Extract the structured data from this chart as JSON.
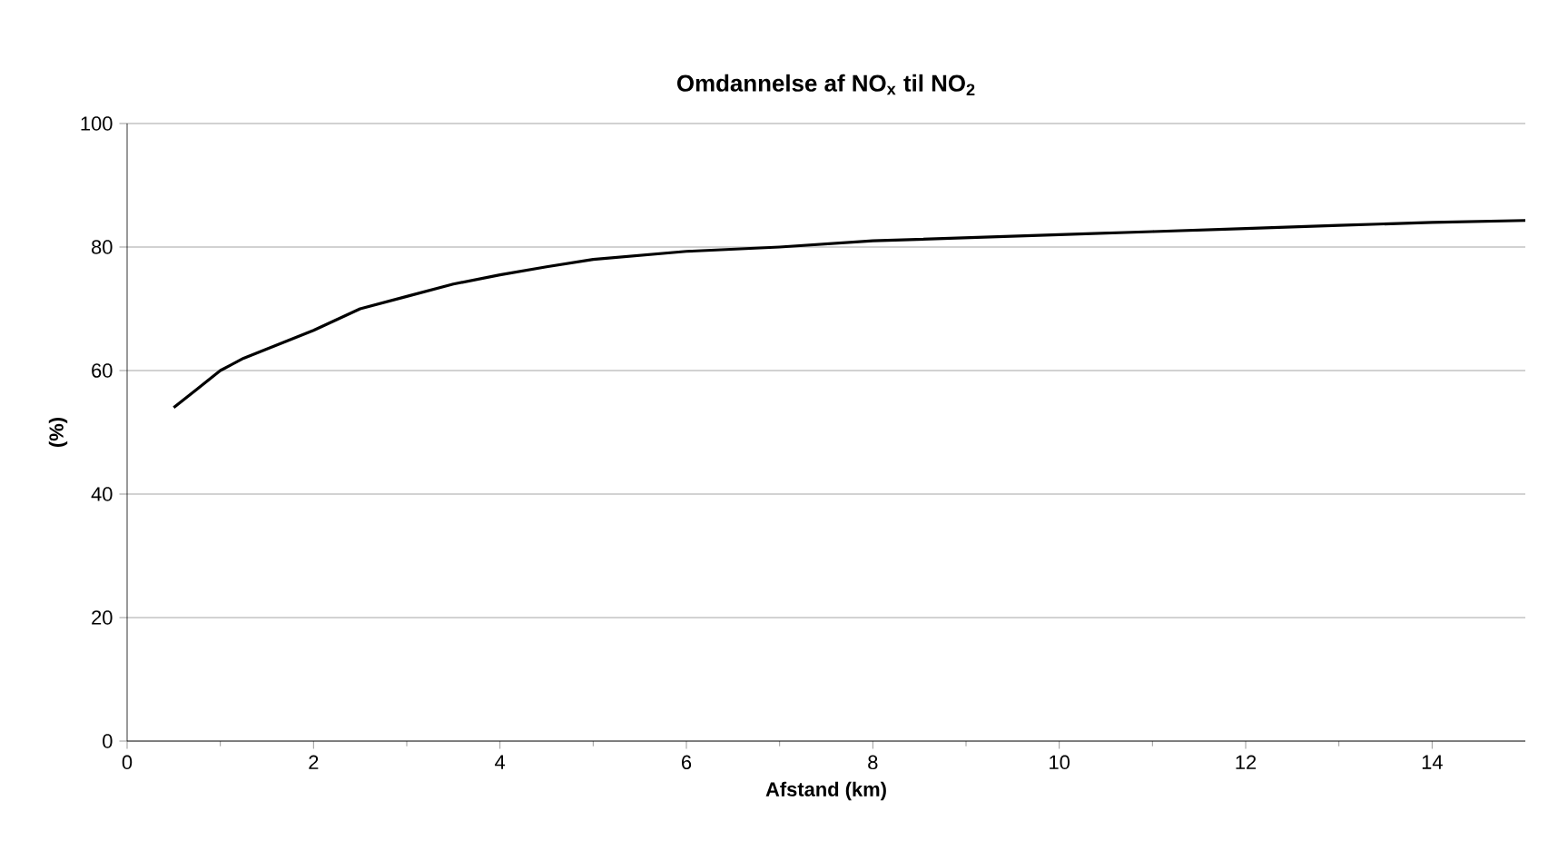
{
  "chart_data": {
    "type": "line",
    "title": "Omdannelse af NO$_{x}$ til NO$_{2}$",
    "xlabel": "Afstand (km)",
    "ylabel": "(%)",
    "x": [
      0.5,
      0.75,
      1,
      1.25,
      1.5,
      2,
      2.5,
      3,
      3.5,
      4,
      4.5,
      5,
      6,
      7,
      8,
      9,
      10,
      11,
      12,
      13,
      14,
      15
    ],
    "series": [
      {
        "color": "#000000",
        "values": [
          54,
          57,
          60,
          62,
          63.5,
          66.5,
          70,
          72,
          74,
          75.5,
          76.8,
          78,
          79.3,
          80,
          81,
          81.5,
          82,
          82.5,
          83,
          83.5,
          84,
          84.3
        ]
      }
    ],
    "xlim": [
      0,
      15
    ],
    "xticks": [
      0,
      2,
      4,
      6,
      8,
      10,
      12,
      14
    ],
    "ylim": [
      0,
      100
    ],
    "yticks": [
      0,
      20,
      40,
      60,
      80,
      100
    ],
    "grid": "y",
    "marker": "none",
    "line_style": "solid"
  }
}
